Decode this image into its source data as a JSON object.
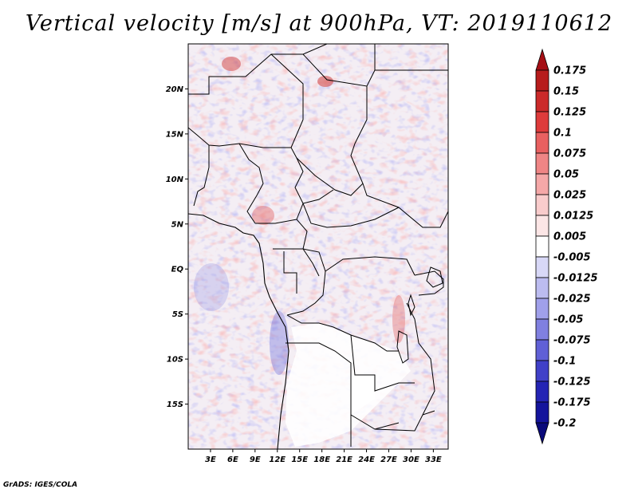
{
  "title": "Vertical velocity [m/s] at 900hPa, VT: 2019110612",
  "credit": "GrADS: IGES/COLA",
  "map": {
    "lat_labels": [
      "20N",
      "15N",
      "10N",
      "5N",
      "EQ",
      "5S",
      "10S",
      "15S"
    ],
    "lat_values": [
      20,
      15,
      10,
      5,
      0,
      -5,
      -10,
      -15
    ],
    "lon_labels": [
      "3E",
      "6E",
      "9E",
      "12E",
      "15E",
      "18E",
      "21E",
      "24E",
      "27E",
      "30E",
      "33E"
    ],
    "lon_values": [
      3,
      6,
      9,
      12,
      15,
      18,
      21,
      24,
      27,
      30,
      33
    ],
    "lat_range": [
      -20,
      25
    ],
    "lon_range": [
      0,
      35
    ]
  },
  "colorbar": {
    "levels": [
      "0.175",
      "0.15",
      "0.125",
      "0.1",
      "0.075",
      "0.05",
      "0.025",
      "0.0125",
      "0.005",
      "-0.005",
      "-0.0125",
      "-0.025",
      "-0.05",
      "-0.075",
      "-0.1",
      "-0.125",
      "-0.175",
      "-0.2"
    ],
    "colors": [
      "#a50f15",
      "#b71c1c",
      "#cb2a2a",
      "#de3b3b",
      "#e86060",
      "#ef8585",
      "#f5a8a8",
      "#f9cccc",
      "#fce6e6",
      "#ffffff",
      "#d8d8f7",
      "#bcbcf0",
      "#a0a0ea",
      "#8080e0",
      "#6060d6",
      "#4040c8",
      "#2424b4",
      "#14149c",
      "#0a0a7a"
    ]
  }
}
